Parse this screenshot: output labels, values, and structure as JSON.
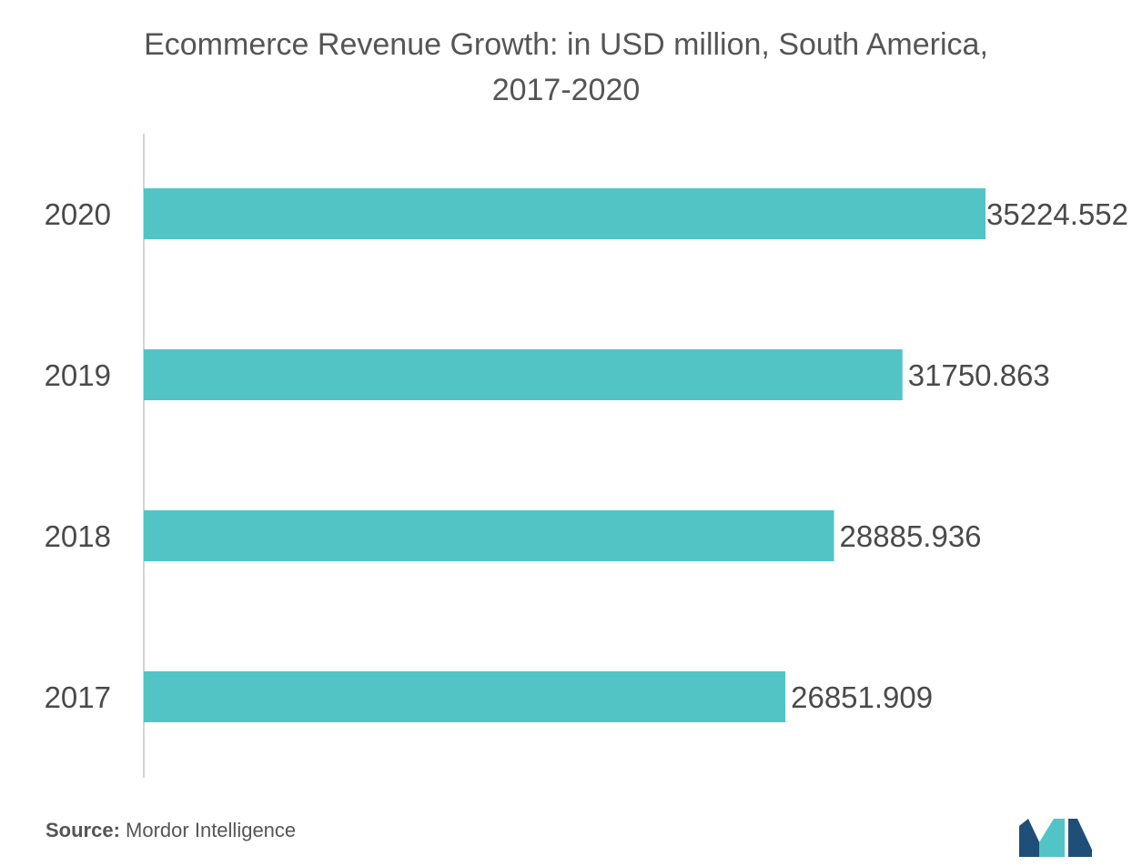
{
  "chart_data": {
    "type": "bar",
    "orientation": "horizontal",
    "title": "Ecommerce Revenue Growth: in USD million, South America, 2017-2020",
    "categories": [
      "2020",
      "2019",
      "2018",
      "2017"
    ],
    "values": [
      35224.552,
      31750.863,
      28885.936,
      26851.909
    ],
    "value_labels": [
      "35224.552",
      "31750.863",
      "28885.936",
      "26851.909"
    ],
    "xlim": [
      0,
      35224.552
    ],
    "bar_color": "#52c4c6",
    "grid": false,
    "legend": "none"
  },
  "footer": {
    "source_label": "Source:",
    "source_text": "Mordor Intelligence"
  },
  "colors": {
    "bar": "#52c4c6",
    "logo_dark": "#1f4e79",
    "logo_light": "#52c4c6"
  }
}
